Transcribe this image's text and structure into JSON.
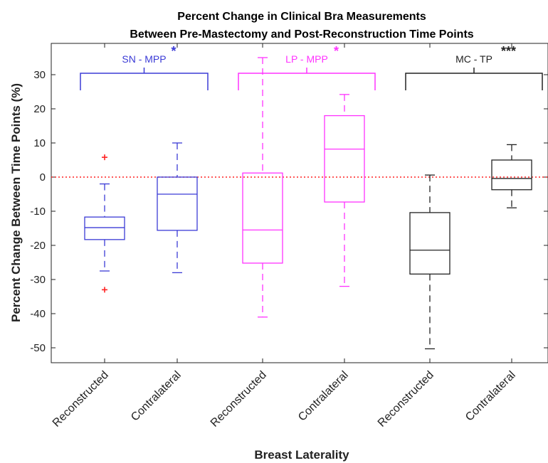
{
  "chart_data": {
    "type": "box",
    "title": [
      "Percent Change in Clinical Bra Measurements",
      "Between Pre-Mastectomy and Post-Reconstruction Time Points"
    ],
    "xlabel": "Breast Laterality",
    "ylabel": "Percent Change Between Time Points (%)",
    "ylim": [
      -55,
      40
    ],
    "yticks": [
      30,
      20,
      10,
      0,
      -10,
      -20,
      -30,
      -40,
      -50
    ],
    "categories": [
      "Reconstructed",
      "Contralateral",
      "Reconstructed",
      "Contralateral",
      "Reconstructed",
      "Contralateral"
    ],
    "reference_line": 0,
    "groups": [
      {
        "name": "SN - MPP",
        "significance": "*",
        "color": "#3b3bd6",
        "boxes": [
          {
            "category": "Reconstructed",
            "min": -27.5,
            "q1": -18.3,
            "median": -14.8,
            "q3": -11.7,
            "max": -2,
            "outliers": [
              5.8,
              -33
            ]
          },
          {
            "category": "Contralateral",
            "min": -28,
            "q1": -15.6,
            "median": -5,
            "q3": 0,
            "max": 10,
            "outliers": []
          }
        ]
      },
      {
        "name": "LP - MPP",
        "significance": "*",
        "color": "#ff33ff",
        "boxes": [
          {
            "category": "Reconstructed",
            "min": -41,
            "q1": -25.2,
            "median": -15.5,
            "q3": 1.2,
            "max": 35,
            "outliers": []
          },
          {
            "category": "Contralateral",
            "min": -32,
            "q1": -7.3,
            "median": 8.2,
            "q3": 18,
            "max": 24.2,
            "outliers": []
          }
        ]
      },
      {
        "name": "MC - TP",
        "significance": "***",
        "color": "#222222",
        "boxes": [
          {
            "category": "Reconstructed",
            "min": -50.3,
            "q1": -28.4,
            "median": -21.4,
            "q3": -10.4,
            "max": 0.6,
            "outliers": []
          },
          {
            "category": "Contralateral",
            "min": -9,
            "q1": -3.7,
            "median": -0.4,
            "q3": 5,
            "max": 9.5,
            "outliers": []
          }
        ]
      }
    ],
    "outlier_color": "#ff2222",
    "reference_color": "#ff2222"
  }
}
